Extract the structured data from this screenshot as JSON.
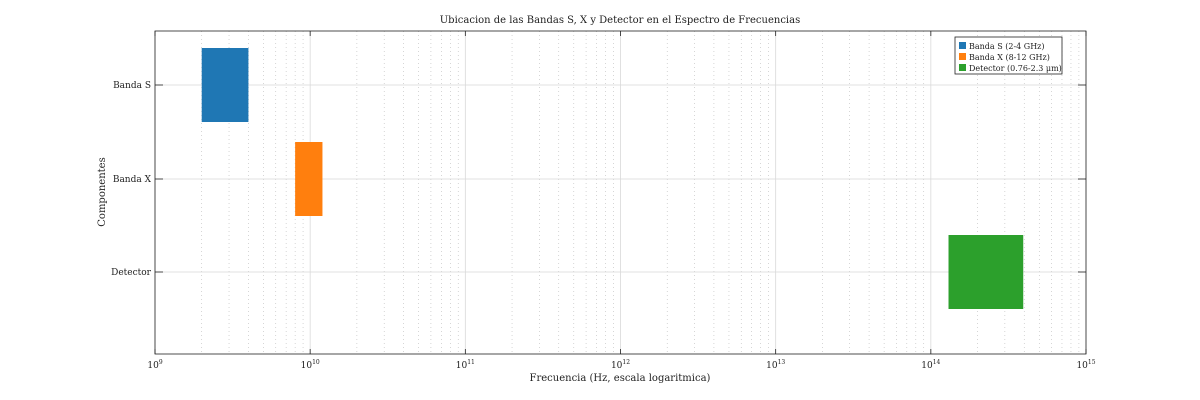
{
  "chart_data": {
    "type": "bar",
    "orientation": "horizontal-range",
    "title": "Ubicacion de las Bandas S, X y Detector en el Espectro de Frecuencias",
    "xlabel": "Frecuencia (Hz, escala logaritmica)",
    "ylabel": "Componentes",
    "xscale": "log",
    "xlim": [
      1000000000.0,
      1000000000000000.0
    ],
    "x_ticks": [
      {
        "value": 1000000000.0,
        "mantissa": "10",
        "exp": "9"
      },
      {
        "value": 10000000000.0,
        "mantissa": "10",
        "exp": "10"
      },
      {
        "value": 100000000000.0,
        "mantissa": "10",
        "exp": "11"
      },
      {
        "value": 1000000000000.0,
        "mantissa": "10",
        "exp": "12"
      },
      {
        "value": 10000000000000.0,
        "mantissa": "10",
        "exp": "13"
      },
      {
        "value": 100000000000000.0,
        "mantissa": "10",
        "exp": "14"
      },
      {
        "value": 1000000000000000.0,
        "mantissa": "10",
        "exp": "15"
      }
    ],
    "categories": [
      "Banda S",
      "Banda X",
      "Detector"
    ],
    "series": [
      {
        "name": "Banda S (2-4 GHz)",
        "category": "Banda S",
        "start": 2000000000.0,
        "end": 4000000000.0,
        "color": "#1f77b4"
      },
      {
        "name": "Banda X (8-12 GHz)",
        "category": "Banda X",
        "start": 8000000000.0,
        "end": 12000000000.0,
        "color": "#ff7f0e"
      },
      {
        "name": "Detector (0.76-2.3 μm)",
        "category": "Detector",
        "start": 130000000000000.0,
        "end": 394000000000000.0,
        "color": "#2ca02c"
      }
    ],
    "grid": true,
    "legend_position": "top-right"
  }
}
